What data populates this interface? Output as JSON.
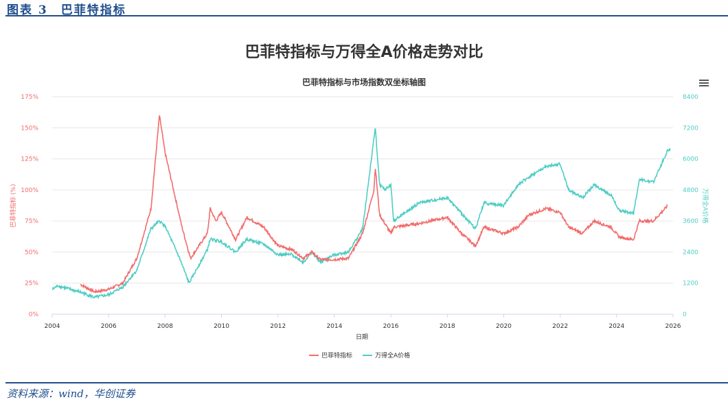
{
  "header": {
    "figure_label": "图表 3　巴菲特指标",
    "main_title": "巴菲特指标与万得全A价格走势对比"
  },
  "footer": {
    "source": "资料来源：wind，华创证券"
  },
  "colors": {
    "buffett": "#f26b6b",
    "wind": "#4ecdc4",
    "brand": "#1f4e8c"
  },
  "chart_data": {
    "type": "line",
    "title": "巴菲特指标与市场指数双坐标轴图",
    "xlabel": "日期",
    "ylabel": "巴菲特指标 (%)",
    "y2label": "万得全A价格",
    "xlim": [
      2004,
      2026
    ],
    "ylim": [
      0,
      175
    ],
    "y2lim": [
      0,
      8400
    ],
    "x_ticks": [
      "2004",
      "2006",
      "2008",
      "2010",
      "2012",
      "2014",
      "2016",
      "2018",
      "2020",
      "2022",
      "2024",
      "2026"
    ],
    "y_ticks": [
      "0%",
      "25%",
      "50%",
      "75%",
      "100%",
      "125%",
      "150%",
      "175%"
    ],
    "y2_ticks": [
      "0",
      "1200",
      "2400",
      "3600",
      "4800",
      "6000",
      "7200",
      "8400"
    ],
    "legend": "bottom",
    "series": [
      {
        "name": "巴菲特指标",
        "axis": "left",
        "points": [
          [
            2005,
            24
          ],
          [
            2005.5,
            18
          ],
          [
            2006,
            20
          ],
          [
            2006.5,
            25
          ],
          [
            2007,
            45
          ],
          [
            2007.5,
            85
          ],
          [
            2007.8,
            160
          ],
          [
            2008,
            130
          ],
          [
            2008.3,
            100
          ],
          [
            2008.6,
            70
          ],
          [
            2008.9,
            45
          ],
          [
            2009.5,
            65
          ],
          [
            2009.6,
            85
          ],
          [
            2009.8,
            75
          ],
          [
            2010,
            82
          ],
          [
            2010.5,
            60
          ],
          [
            2010.9,
            78
          ],
          [
            2011.5,
            70
          ],
          [
            2012,
            55
          ],
          [
            2012.5,
            52
          ],
          [
            2012.9,
            45
          ],
          [
            2013.2,
            50
          ],
          [
            2013.5,
            44
          ],
          [
            2014,
            44
          ],
          [
            2014.5,
            45
          ],
          [
            2015,
            65
          ],
          [
            2015.4,
            100
          ],
          [
            2015.45,
            118
          ],
          [
            2015.6,
            80
          ],
          [
            2016,
            65
          ],
          [
            2016.1,
            70
          ],
          [
            2017,
            73
          ],
          [
            2018,
            78
          ],
          [
            2018.5,
            65
          ],
          [
            2019,
            55
          ],
          [
            2019.3,
            70
          ],
          [
            2020,
            65
          ],
          [
            2020.5,
            70
          ],
          [
            2020.9,
            80
          ],
          [
            2021.5,
            85
          ],
          [
            2022,
            82
          ],
          [
            2022.3,
            70
          ],
          [
            2022.8,
            65
          ],
          [
            2023.2,
            75
          ],
          [
            2023.8,
            70
          ],
          [
            2024.1,
            62
          ],
          [
            2024.6,
            60
          ],
          [
            2024.8,
            75
          ],
          [
            2025.3,
            75
          ],
          [
            2025.8,
            87
          ]
        ]
      },
      {
        "name": "万得全A价格",
        "axis": "right",
        "points": [
          [
            2004,
            950
          ],
          [
            2004.2,
            1100
          ],
          [
            2005,
            850
          ],
          [
            2005.5,
            650
          ],
          [
            2006,
            750
          ],
          [
            2006.5,
            1050
          ],
          [
            2007,
            1700
          ],
          [
            2007.5,
            3300
          ],
          [
            2007.8,
            3600
          ],
          [
            2008,
            3400
          ],
          [
            2008.5,
            2200
          ],
          [
            2008.85,
            1200
          ],
          [
            2009.5,
            2500
          ],
          [
            2009.6,
            2900
          ],
          [
            2010,
            2800
          ],
          [
            2010.5,
            2400
          ],
          [
            2010.9,
            2900
          ],
          [
            2011.5,
            2700
          ],
          [
            2012,
            2300
          ],
          [
            2012.5,
            2300
          ],
          [
            2012.9,
            2000
          ],
          [
            2013.2,
            2400
          ],
          [
            2013.5,
            2000
          ],
          [
            2014,
            2300
          ],
          [
            2014.5,
            2400
          ],
          [
            2015,
            3300
          ],
          [
            2015.45,
            7200
          ],
          [
            2015.6,
            5000
          ],
          [
            2015.8,
            4800
          ],
          [
            2016,
            5000
          ],
          [
            2016.1,
            3600
          ],
          [
            2017,
            4300
          ],
          [
            2018,
            4500
          ],
          [
            2018.5,
            3900
          ],
          [
            2019,
            3300
          ],
          [
            2019.3,
            4300
          ],
          [
            2020,
            4200
          ],
          [
            2020.5,
            5000
          ],
          [
            2020.9,
            5300
          ],
          [
            2021.5,
            5700
          ],
          [
            2022,
            5800
          ],
          [
            2022.3,
            4800
          ],
          [
            2022.8,
            4500
          ],
          [
            2023.2,
            5000
          ],
          [
            2023.8,
            4600
          ],
          [
            2024.1,
            4000
          ],
          [
            2024.6,
            3900
          ],
          [
            2024.8,
            5200
          ],
          [
            2025.3,
            5100
          ],
          [
            2025.8,
            6300
          ],
          [
            2025.9,
            6400
          ]
        ]
      }
    ]
  }
}
